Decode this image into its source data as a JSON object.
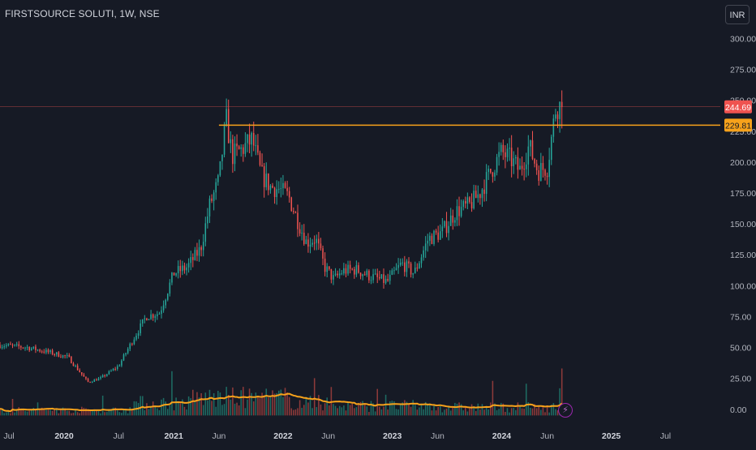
{
  "header": {
    "symbol_title": "FIRSTSOURCE SOLUTI, 1W, NSE",
    "currency_label": "INR"
  },
  "colors": {
    "background": "#161a25",
    "up": "#26a69a",
    "down": "#ef5350",
    "vol_up": "#1e6b63",
    "vol_down": "#8d3a3a",
    "ma_line": "#f7a21b",
    "hline": "#f7a21b",
    "last_price_line": "#ef5350",
    "axis_text": "#b2b5be",
    "grid": "#1e222d"
  },
  "chart_data": {
    "type": "candlestick",
    "interval": "1W",
    "title": "FIRSTSOURCE SOLUTI, 1W, NSE",
    "y_axis": {
      "ticks": [
        0,
        25,
        50,
        75,
        100,
        125,
        150,
        175,
        200,
        225,
        250,
        275,
        300
      ],
      "tick_labels": [
        "0.00",
        "25.00",
        "50.00",
        "75.00",
        "100.00",
        "125.00",
        "150.00",
        "175.00",
        "200.00",
        "225.00",
        "250.00",
        "275.00",
        "300.00"
      ],
      "range": [
        -10,
        318
      ]
    },
    "x_axis": {
      "labels": [
        "Jul",
        "2020",
        "Jul",
        "2021",
        "Jun",
        "2022",
        "Jun",
        "2023",
        "Jun",
        "2024",
        "Jun",
        "2025",
        "Jul"
      ],
      "dates": [
        "2019-07-01",
        "2020-01-01",
        "2020-07-01",
        "2021-01-01",
        "2021-06-01",
        "2022-01-01",
        "2022-06-01",
        "2023-01-01",
        "2023-06-01",
        "2024-01-01",
        "2024-06-01",
        "2025-01-01",
        "2025-07-01"
      ],
      "range": [
        "2019-06-01",
        "2025-12-31"
      ]
    },
    "price_anchors": [
      [
        "2019-06-01",
        52
      ],
      [
        "2019-09-01",
        50
      ],
      [
        "2019-12-01",
        45
      ],
      [
        "2020-01-15",
        42
      ],
      [
        "2020-03-20",
        22
      ],
      [
        "2020-05-01",
        25
      ],
      [
        "2020-07-01",
        35
      ],
      [
        "2020-08-15",
        55
      ],
      [
        "2020-10-01",
        75
      ],
      [
        "2020-11-15",
        78
      ],
      [
        "2021-01-01",
        110
      ],
      [
        "2021-02-15",
        115
      ],
      [
        "2021-04-01",
        130
      ],
      [
        "2021-05-01",
        165
      ],
      [
        "2021-06-01",
        185
      ],
      [
        "2021-06-25",
        235
      ],
      [
        "2021-07-15",
        205
      ],
      [
        "2021-08-15",
        210
      ],
      [
        "2021-09-20",
        218
      ],
      [
        "2021-10-20",
        190
      ],
      [
        "2021-11-20",
        180
      ],
      [
        "2021-12-20",
        178
      ],
      [
        "2022-01-20",
        172
      ],
      [
        "2022-02-15",
        155
      ],
      [
        "2022-03-20",
        135
      ],
      [
        "2022-04-20",
        138
      ],
      [
        "2022-05-20",
        115
      ],
      [
        "2022-06-20",
        105
      ],
      [
        "2022-07-20",
        112
      ],
      [
        "2022-09-01",
        113
      ],
      [
        "2022-10-15",
        108
      ],
      [
        "2022-12-15",
        103
      ],
      [
        "2023-02-01",
        118
      ],
      [
        "2023-03-15",
        110
      ],
      [
        "2023-05-01",
        138
      ],
      [
        "2023-06-15",
        143
      ],
      [
        "2023-08-01",
        160
      ],
      [
        "2023-09-15",
        165
      ],
      [
        "2023-10-20",
        175
      ],
      [
        "2023-12-01",
        195
      ],
      [
        "2024-01-01",
        208
      ],
      [
        "2024-02-01",
        202
      ],
      [
        "2024-03-01",
        193
      ],
      [
        "2024-04-01",
        213
      ],
      [
        "2024-05-01",
        193
      ],
      [
        "2024-06-01",
        196
      ],
      [
        "2024-07-01",
        246
      ],
      [
        "2024-07-22",
        244.69
      ]
    ],
    "series": [
      {
        "name": "Volume MA",
        "type": "line",
        "approx_level": 6
      }
    ],
    "horizontal_line": {
      "value": 229.81,
      "start_date": "2021-06-01",
      "label": "229.81"
    },
    "last_price": {
      "value": 244.69,
      "label": "244.69"
    },
    "volume_marker_date": "2024-07-22",
    "legend": "none",
    "grid": false
  }
}
